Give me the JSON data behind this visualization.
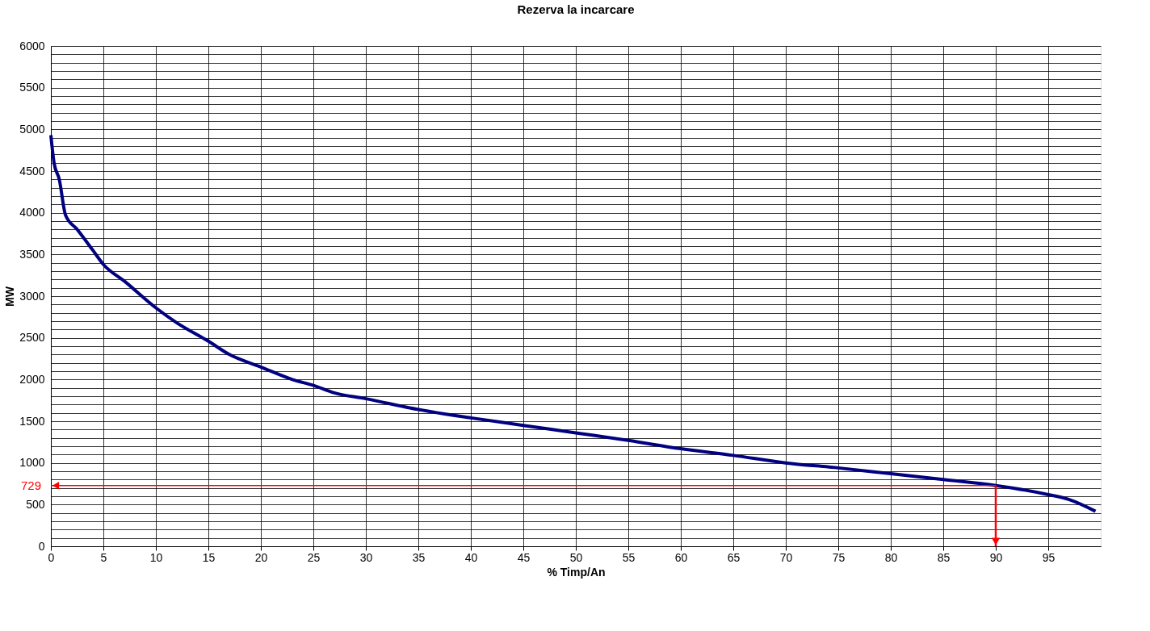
{
  "chart_data": {
    "type": "line",
    "title": "Rezerva la incarcare",
    "xlabel": "% Timp/An",
    "ylabel": "MW",
    "x": [
      0,
      0.3,
      0.8,
      1.4,
      2.5,
      4,
      5,
      7,
      10,
      12,
      15,
      17,
      20,
      23,
      25,
      27,
      30,
      35,
      40,
      45,
      50,
      55,
      60,
      65,
      70,
      75,
      80,
      85,
      90,
      95,
      97,
      99.5
    ],
    "series": [
      {
        "color": "#000080",
        "values": [
          4930,
          4600,
          4400,
          3970,
          3800,
          3550,
          3380,
          3180,
          2860,
          2680,
          2460,
          2300,
          2150,
          2000,
          1930,
          1840,
          1770,
          1640,
          1540,
          1450,
          1360,
          1270,
          1170,
          1090,
          1000,
          940,
          870,
          800,
          729,
          620,
          560,
          420
        ]
      }
    ],
    "xlim": [
      0,
      100
    ],
    "xticks": [
      0,
      5,
      10,
      15,
      20,
      25,
      30,
      35,
      40,
      45,
      50,
      55,
      60,
      65,
      70,
      75,
      80,
      85,
      90,
      95
    ],
    "ylim": [
      0,
      6000
    ],
    "yticks": [
      0,
      {
        "value": 100,
        "label": null
      },
      {
        "value": 200,
        "label": null
      },
      {
        "value": 300,
        "label": null
      },
      {
        "value": 400,
        "label": null
      },
      500,
      {
        "value": 600,
        "label": null
      },
      {
        "value": 700,
        "label": null
      },
      {
        "value": 800,
        "label": null
      },
      {
        "value": 900,
        "label": null
      },
      1000,
      {
        "value": 1100,
        "label": null
      },
      {
        "value": 1200,
        "label": null
      },
      {
        "value": 1300,
        "label": null
      },
      {
        "value": 1400,
        "label": null
      },
      1500,
      {
        "value": 1600,
        "label": null
      },
      {
        "value": 1700,
        "label": null
      },
      {
        "value": 1800,
        "label": null
      },
      {
        "value": 1900,
        "label": null
      },
      2000,
      {
        "value": 2100,
        "label": null
      },
      {
        "value": 2200,
        "label": null
      },
      {
        "value": 2300,
        "label": null
      },
      {
        "value": 2400,
        "label": null
      },
      2500,
      {
        "value": 2600,
        "label": null
      },
      {
        "value": 2700,
        "label": null
      },
      {
        "value": 2800,
        "label": null
      },
      {
        "value": 2900,
        "label": null
      },
      3000,
      {
        "value": 3100,
        "label": null
      },
      {
        "value": 3200,
        "label": null
      },
      {
        "value": 3300,
        "label": null
      },
      {
        "value": 3400,
        "label": null
      },
      3500,
      {
        "value": 3600,
        "label": null
      },
      {
        "value": 3700,
        "label": null
      },
      {
        "value": 3800,
        "label": null
      },
      {
        "value": 3900,
        "label": null
      },
      4000,
      {
        "value": 4100,
        "label": null
      },
      {
        "value": 4200,
        "label": null
      },
      {
        "value": 4300,
        "label": null
      },
      {
        "value": 4400,
        "label": null
      },
      4500,
      {
        "value": 4600,
        "label": null
      },
      {
        "value": 4700,
        "label": null
      },
      {
        "value": 4800,
        "label": null
      },
      {
        "value": 4900,
        "label": null
      },
      5000,
      {
        "value": 5100,
        "label": null
      },
      {
        "value": 5200,
        "label": null
      },
      {
        "value": 5300,
        "label": null
      },
      {
        "value": 5400,
        "label": null
      },
      5500,
      {
        "value": 5600,
        "label": null
      },
      {
        "value": 5700,
        "label": null
      },
      {
        "value": 5800,
        "label": null
      },
      {
        "value": 5900,
        "label": null
      },
      6000
    ],
    "grid": true,
    "marker": "none",
    "line_style": "solid",
    "annotations": [
      {
        "text": "729",
        "x": 90,
        "y": 729
      }
    ]
  }
}
